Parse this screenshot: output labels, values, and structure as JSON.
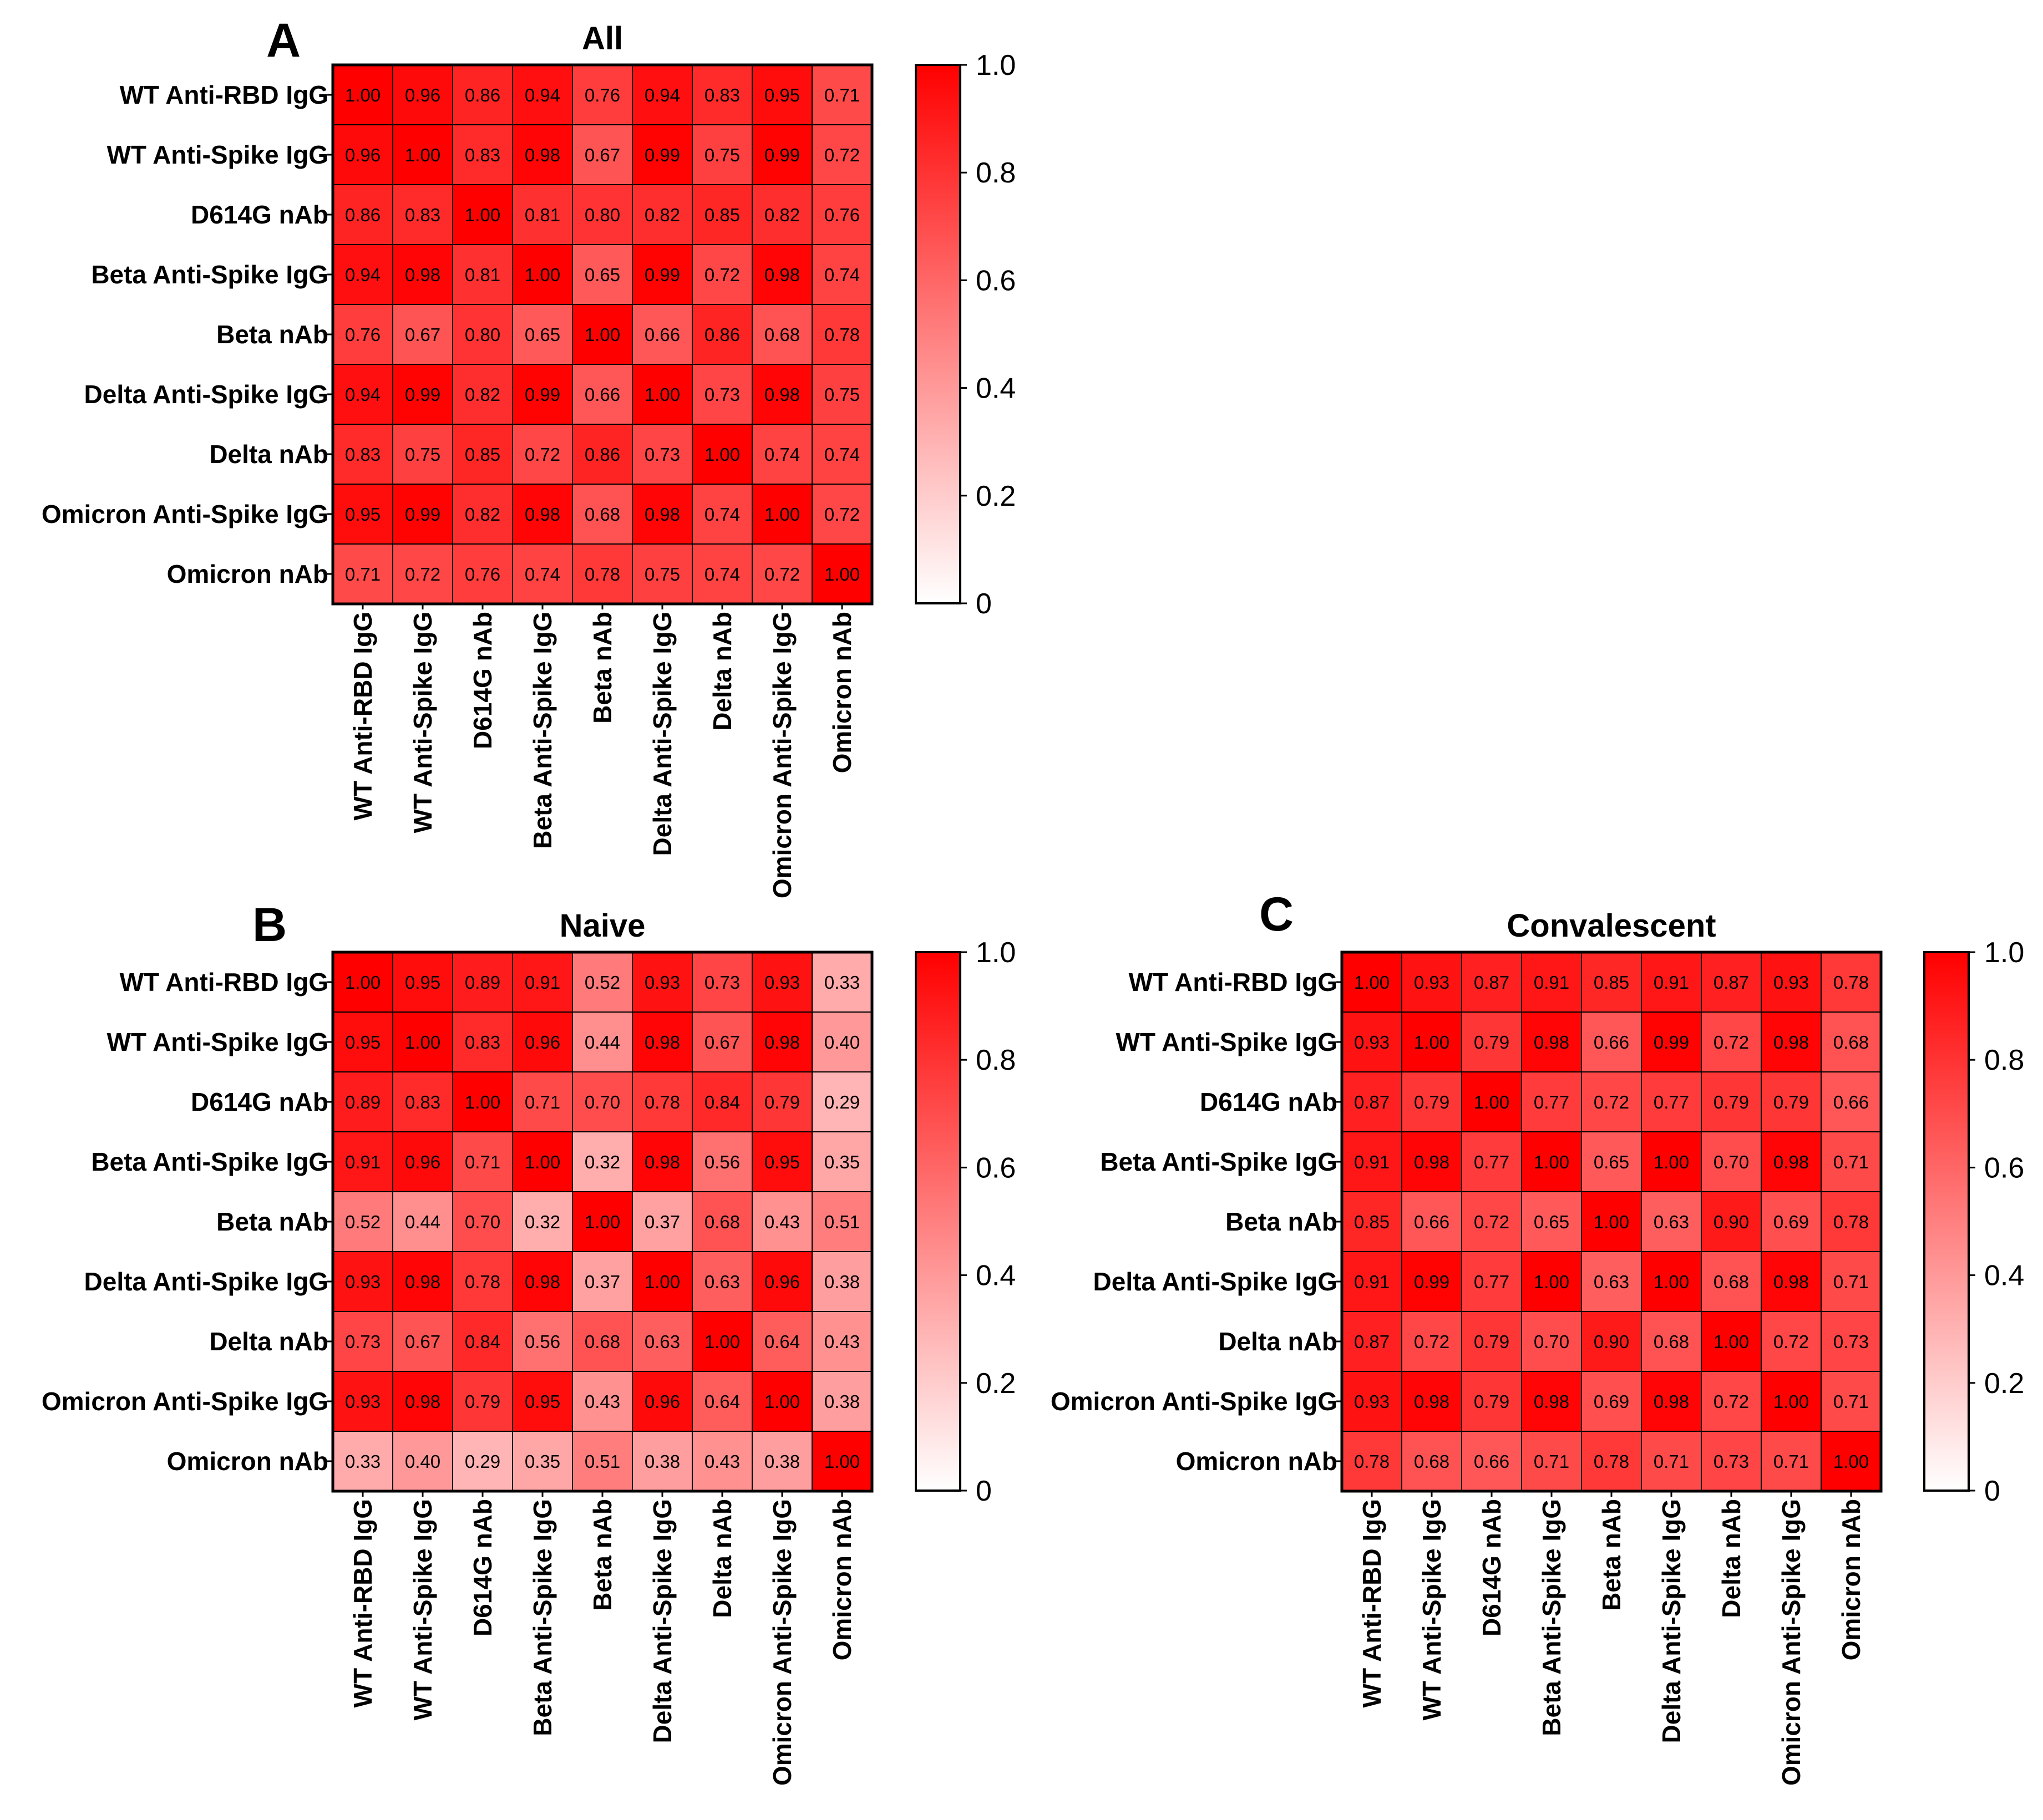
{
  "chart_data": [
    {
      "type": "heatmap",
      "panel": "A",
      "title": "All",
      "rows": [
        "WT Anti-RBD IgG",
        "WT Anti-Spike IgG",
        "D614G nAb",
        "Beta Anti-Spike IgG",
        "Beta nAb",
        "Delta Anti-Spike IgG",
        "Delta nAb",
        "Omicron Anti-Spike IgG",
        "Omicron nAb"
      ],
      "columns": [
        "WT Anti-RBD IgG",
        "WT Anti-Spike IgG",
        "D614G nAb",
        "Beta Anti-Spike IgG",
        "Beta nAb",
        "Delta Anti-Spike IgG",
        "Delta nAb",
        "Omicron Anti-Spike IgG",
        "Omicron nAb"
      ],
      "values": [
        [
          1.0,
          0.96,
          0.86,
          0.94,
          0.76,
          0.94,
          0.83,
          0.95,
          0.71
        ],
        [
          0.96,
          1.0,
          0.83,
          0.98,
          0.67,
          0.99,
          0.75,
          0.99,
          0.72
        ],
        [
          0.86,
          0.83,
          1.0,
          0.81,
          0.8,
          0.82,
          0.85,
          0.82,
          0.76
        ],
        [
          0.94,
          0.98,
          0.81,
          1.0,
          0.65,
          0.99,
          0.72,
          0.98,
          0.74
        ],
        [
          0.76,
          0.67,
          0.8,
          0.65,
          1.0,
          0.66,
          0.86,
          0.68,
          0.78
        ],
        [
          0.94,
          0.99,
          0.82,
          0.99,
          0.66,
          1.0,
          0.73,
          0.98,
          0.75
        ],
        [
          0.83,
          0.75,
          0.85,
          0.72,
          0.86,
          0.73,
          1.0,
          0.74,
          0.74
        ],
        [
          0.95,
          0.99,
          0.82,
          0.98,
          0.68,
          0.98,
          0.74,
          1.0,
          0.72
        ],
        [
          0.71,
          0.72,
          0.76,
          0.74,
          0.78,
          0.75,
          0.74,
          0.72,
          1.0
        ]
      ],
      "colorbar": {
        "range": [
          0,
          1.0
        ],
        "ticks": [
          "0",
          "0.2",
          "0.4",
          "0.6",
          "0.8",
          "1.0"
        ]
      }
    },
    {
      "type": "heatmap",
      "panel": "B",
      "title": "Naive",
      "rows": [
        "WT Anti-RBD IgG",
        "WT Anti-Spike IgG",
        "D614G nAb",
        "Beta Anti-Spike IgG",
        "Beta nAb",
        "Delta Anti-Spike IgG",
        "Delta nAb",
        "Omicron Anti-Spike IgG",
        "Omicron nAb"
      ],
      "columns": [
        "WT Anti-RBD IgG",
        "WT Anti-Spike IgG",
        "D614G nAb",
        "Beta Anti-Spike IgG",
        "Beta nAb",
        "Delta Anti-Spike IgG",
        "Delta nAb",
        "Omicron Anti-Spike IgG",
        "Omicron nAb"
      ],
      "values": [
        [
          1.0,
          0.95,
          0.89,
          0.91,
          0.52,
          0.93,
          0.73,
          0.93,
          0.33
        ],
        [
          0.95,
          1.0,
          0.83,
          0.96,
          0.44,
          0.98,
          0.67,
          0.98,
          0.4
        ],
        [
          0.89,
          0.83,
          1.0,
          0.71,
          0.7,
          0.78,
          0.84,
          0.79,
          0.29
        ],
        [
          0.91,
          0.96,
          0.71,
          1.0,
          0.32,
          0.98,
          0.56,
          0.95,
          0.35
        ],
        [
          0.52,
          0.44,
          0.7,
          0.32,
          1.0,
          0.37,
          0.68,
          0.43,
          0.51
        ],
        [
          0.93,
          0.98,
          0.78,
          0.98,
          0.37,
          1.0,
          0.63,
          0.96,
          0.38
        ],
        [
          0.73,
          0.67,
          0.84,
          0.56,
          0.68,
          0.63,
          1.0,
          0.64,
          0.43
        ],
        [
          0.93,
          0.98,
          0.79,
          0.95,
          0.43,
          0.96,
          0.64,
          1.0,
          0.38
        ],
        [
          0.33,
          0.4,
          0.29,
          0.35,
          0.51,
          0.38,
          0.43,
          0.38,
          1.0
        ]
      ],
      "colorbar": {
        "range": [
          0,
          1.0
        ],
        "ticks": [
          "0",
          "0.2",
          "0.4",
          "0.6",
          "0.8",
          "1.0"
        ]
      }
    },
    {
      "type": "heatmap",
      "panel": "C",
      "title": "Convalescent",
      "rows": [
        "WT Anti-RBD IgG",
        "WT Anti-Spike IgG",
        "D614G nAb",
        "Beta Anti-Spike IgG",
        "Beta nAb",
        "Delta Anti-Spike IgG",
        "Delta nAb",
        "Omicron Anti-Spike IgG",
        "Omicron nAb"
      ],
      "columns": [
        "WT Anti-RBD IgG",
        "WT Anti-Spike IgG",
        "D614G nAb",
        "Beta Anti-Spike IgG",
        "Beta nAb",
        "Delta Anti-Spike IgG",
        "Delta nAb",
        "Omicron Anti-Spike IgG",
        "Omicron nAb"
      ],
      "values": [
        [
          1.0,
          0.93,
          0.87,
          0.91,
          0.85,
          0.91,
          0.87,
          0.93,
          0.78
        ],
        [
          0.93,
          1.0,
          0.79,
          0.98,
          0.66,
          0.99,
          0.72,
          0.98,
          0.68
        ],
        [
          0.87,
          0.79,
          1.0,
          0.77,
          0.72,
          0.77,
          0.79,
          0.79,
          0.66
        ],
        [
          0.91,
          0.98,
          0.77,
          1.0,
          0.65,
          1.0,
          0.7,
          0.98,
          0.71
        ],
        [
          0.85,
          0.66,
          0.72,
          0.65,
          1.0,
          0.63,
          0.9,
          0.69,
          0.78
        ],
        [
          0.91,
          0.99,
          0.77,
          1.0,
          0.63,
          1.0,
          0.68,
          0.98,
          0.71
        ],
        [
          0.87,
          0.72,
          0.79,
          0.7,
          0.9,
          0.68,
          1.0,
          0.72,
          0.73
        ],
        [
          0.93,
          0.98,
          0.79,
          0.98,
          0.69,
          0.98,
          0.72,
          1.0,
          0.71
        ],
        [
          0.78,
          0.68,
          0.66,
          0.71,
          0.78,
          0.71,
          0.73,
          0.71,
          1.0
        ]
      ],
      "colorbar": {
        "range": [
          0,
          1.0
        ],
        "ticks": [
          "0",
          "0.2",
          "0.4",
          "0.6",
          "0.8",
          "1.0"
        ]
      }
    }
  ],
  "colors": {
    "high": "#ff0000",
    "low": "#ffffff",
    "border": "#000000"
  }
}
